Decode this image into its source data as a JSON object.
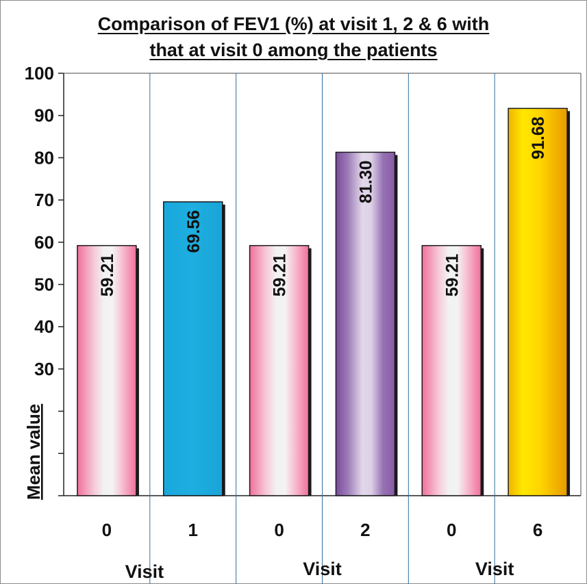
{
  "chart_data": {
    "type": "bar",
    "title_lines": [
      "Comparison of FEV1 (%) at visit 1, 2 & 6 with",
      "that at visit 0 among the patients"
    ],
    "ylabel": "Mean value",
    "ylim": [
      0,
      100
    ],
    "yticks": [
      {
        "value": 100,
        "label": "100"
      },
      {
        "value": 90,
        "label": "90"
      },
      {
        "value": 80,
        "label": "80"
      },
      {
        "value": 70,
        "label": "70"
      },
      {
        "value": 60,
        "label": "60"
      },
      {
        "value": 50,
        "label": "50"
      },
      {
        "value": 40,
        "label": "40"
      },
      {
        "value": 30,
        "label": "30"
      },
      {
        "value": 20,
        "label": ""
      },
      {
        "value": 10,
        "label": ""
      },
      {
        "value": 0,
        "label": ""
      }
    ],
    "categories": [
      "0",
      "1",
      "0",
      "2",
      "0",
      "6"
    ],
    "values": [
      59.21,
      69.56,
      59.21,
      81.3,
      59.21,
      91.68
    ],
    "value_labels": [
      "59.21",
      "69.56",
      "59.21",
      "81.30",
      "59.21",
      "91.68"
    ],
    "group_labels": [
      "Visit",
      "Visit",
      "Visit"
    ],
    "bar_styles": [
      "pink",
      "blue",
      "pink",
      "purple",
      "pink",
      "yellow"
    ],
    "colors": {
      "pink": "#f0709c",
      "blue": "#1eaee0",
      "purple": "#8a5aa6",
      "yellow": "#ffd400",
      "divider": "#2f6fa0"
    },
    "grid": false
  }
}
